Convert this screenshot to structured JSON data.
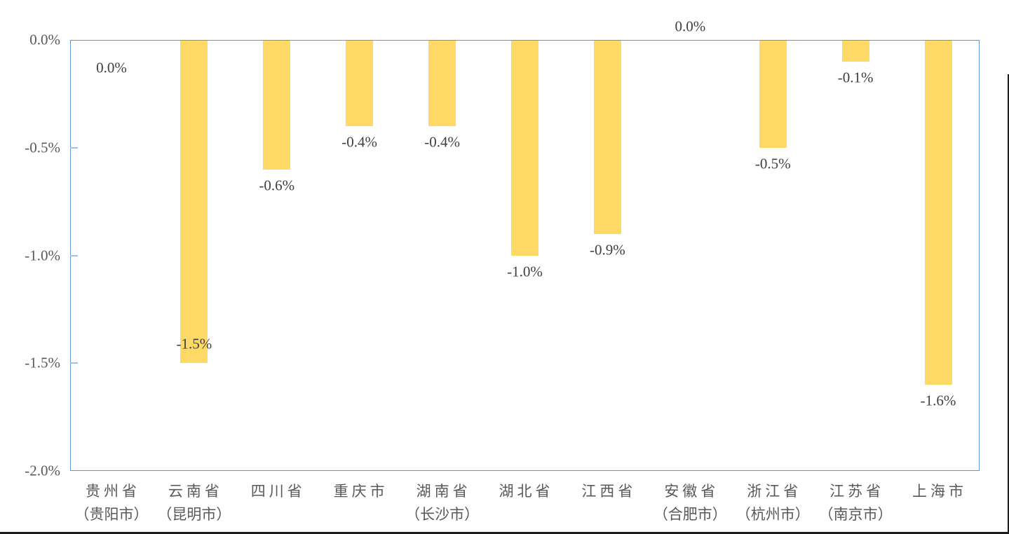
{
  "chart_data": {
    "type": "bar",
    "title": "",
    "xlabel": "",
    "ylabel": "",
    "categories": [
      {
        "name": "贵州省",
        "city": "（贵阳市）"
      },
      {
        "name": "云南省",
        "city": "（昆明市）"
      },
      {
        "name": "四川省",
        "city": ""
      },
      {
        "name": "重庆市",
        "city": ""
      },
      {
        "name": "湖南省",
        "city": "（长沙市）"
      },
      {
        "name": "湖北省",
        "city": ""
      },
      {
        "name": "江西省",
        "city": ""
      },
      {
        "name": "安徽省",
        "city": "（合肥市）"
      },
      {
        "name": "浙江省",
        "city": "（杭州市）"
      },
      {
        "name": "江苏省",
        "city": "（南京市）"
      },
      {
        "name": "上海市",
        "city": ""
      }
    ],
    "values": [
      0.0,
      -1.5,
      -0.6,
      -0.4,
      -0.4,
      -1.0,
      -0.9,
      0.0,
      -0.5,
      -0.1,
      -1.6
    ],
    "data_labels": [
      "0.0%",
      "-1.5%",
      "-0.6%",
      "-0.4%",
      "-0.4%",
      "-1.0%",
      "-0.9%",
      "0.0%",
      "-0.5%",
      "-0.1%",
      "-1.6%"
    ],
    "data_label_placement": [
      "below-axis",
      "inside-end",
      "below-bar",
      "below-bar",
      "below-bar",
      "below-bar",
      "below-bar",
      "above-axis",
      "below-bar",
      "below-bar",
      "below-bar"
    ],
    "y_axis": {
      "ticks": [
        "0.0%",
        "-0.5%",
        "-1.0%",
        "-1.5%",
        "-2.0%"
      ],
      "min": -2.0,
      "max": 0.0
    },
    "ylim": [
      -2.0,
      0.0
    ],
    "grid": false,
    "legend": "none",
    "colors": {
      "bar_fill": "#FFD966",
      "plot_border": "#5B9BD5",
      "tick_mark": "#9DC3E6",
      "data_label_text": "#404040",
      "axis_label_text": "#595959",
      "frame_edge": "#1c1c1c"
    }
  }
}
